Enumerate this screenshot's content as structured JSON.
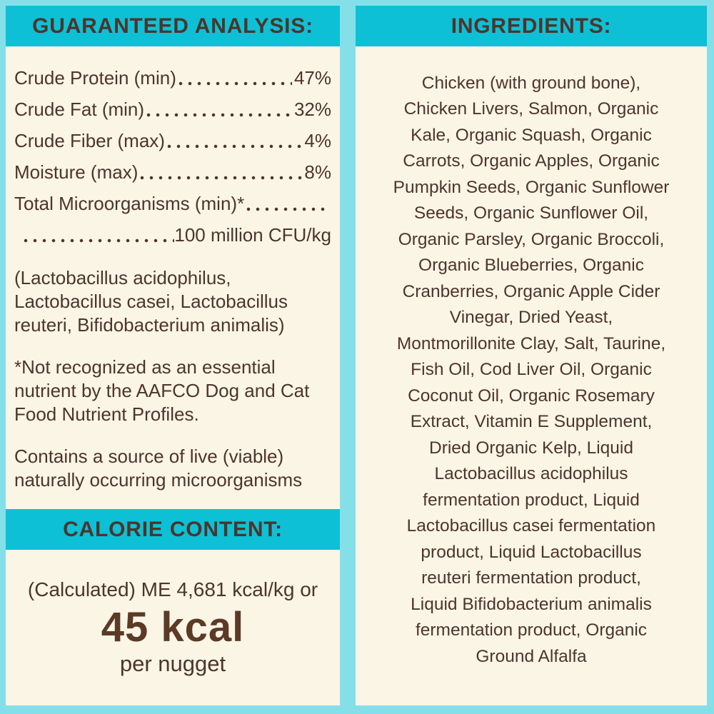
{
  "colors": {
    "background": "#85dfe8",
    "band": "#0dc0d6",
    "panel": "#fbf5e6",
    "text": "#4d352b",
    "kcal_text": "#5b3a26"
  },
  "left_panel": {
    "analysis_header": "GUARANTEED ANALYSIS:",
    "rows": [
      {
        "label": "Crude Protein (min)",
        "value": "47%"
      },
      {
        "label": "Crude Fat (min)",
        "value": "32%"
      },
      {
        "label": "Crude Fiber (max)",
        "value": "4%"
      },
      {
        "label": "Moisture (max)",
        "value": "8%"
      }
    ],
    "microorganisms": {
      "label": "Total Microorganisms (min)*",
      "value": "100 million CFU/kg"
    },
    "species_note": "(Lactobacillus acidophilus,\nLactobacillus casei, Lactobacillus\nreuteri, Bifidobacterium animalis)",
    "footnote": "*Not recognized as an essential\nnutrient by the AAFCO Dog and Cat\nFood Nutrient Profiles.",
    "viable_note": "Contains a source of live (viable)\nnaturally occurring microorganisms",
    "calorie_header": "CALORIE CONTENT:",
    "calorie_line": "(Calculated) ME 4,681 kcal/kg or",
    "calorie_value": "45 kcal",
    "calorie_unit": "per nugget"
  },
  "right_panel": {
    "header": "INGREDIENTS:",
    "ingredients": "Chicken (with ground bone),\nChicken Livers, Salmon, Organic\nKale, Organic Squash, Organic\nCarrots, Organic Apples, Organic\nPumpkin Seeds, Organic Sunflower\nSeeds, Organic Sunflower Oil,\nOrganic Parsley, Organic Broccoli,\nOrganic Blueberries, Organic\nCranberries, Organic Apple Cider\nVinegar, Dried Yeast,\nMontmorillonite Clay, Salt, Taurine,\nFish Oil, Cod Liver Oil, Organic\nCoconut Oil, Organic Rosemary\nExtract, Vitamin E Supplement,\nDried Organic Kelp, Liquid\nLactobacillus acidophilus\nfermentation product, Liquid\nLactobacillus casei fermentation\nproduct, Liquid Lactobacillus\nreuteri fermentation product,\nLiquid Bifidobacterium animalis\nfermentation product, Organic\nGround Alfalfa"
  }
}
